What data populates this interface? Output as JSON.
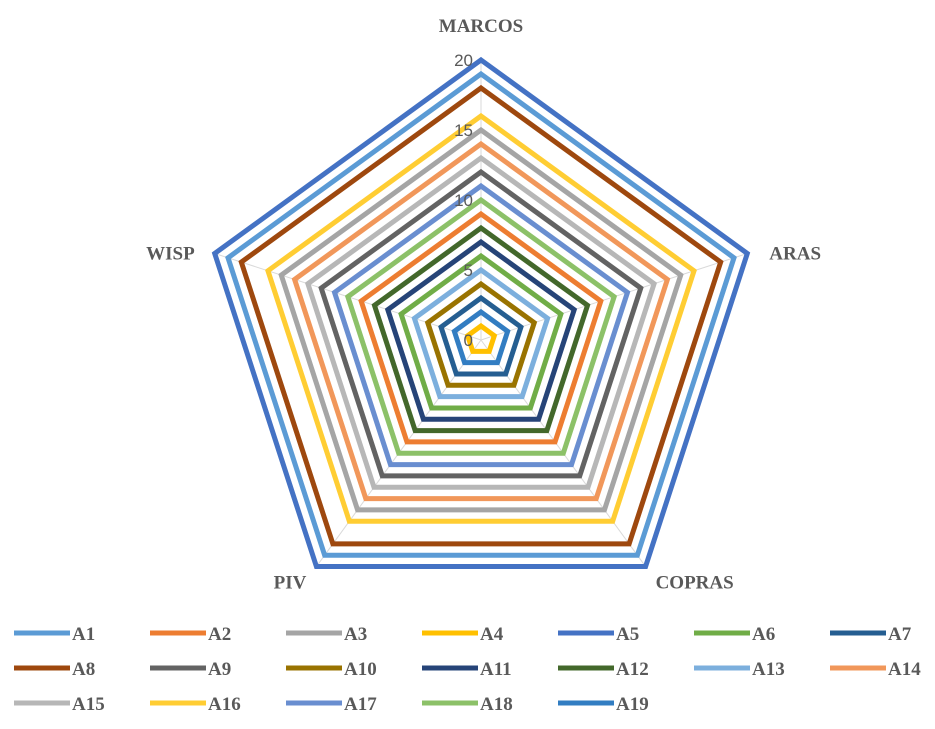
{
  "chart_data": {
    "type": "radar",
    "axes": [
      "MARCOS",
      "ARAS",
      "COPRAS",
      "PIV",
      "WISP"
    ],
    "rmin": 0,
    "rmax": 20,
    "ticks": [
      "0",
      "5",
      "10",
      "15",
      "20"
    ],
    "grid": true,
    "legend_position": "bottom",
    "series": [
      {
        "name": "A1",
        "color": "#5B9BD5",
        "values": [
          19,
          19,
          19,
          19,
          19
        ]
      },
      {
        "name": "A2",
        "color": "#ED7D31",
        "values": [
          9,
          9,
          9,
          9,
          9
        ]
      },
      {
        "name": "A3",
        "color": "#A5A5A5",
        "values": [
          15,
          15,
          15,
          15,
          15
        ]
      },
      {
        "name": "A4",
        "color": "#FFC000",
        "values": [
          1,
          1,
          1,
          1,
          1
        ]
      },
      {
        "name": "A5",
        "color": "#4472C4",
        "values": [
          20,
          20,
          20,
          20,
          20
        ]
      },
      {
        "name": "A6",
        "color": "#70AD47",
        "values": [
          6,
          6,
          6,
          6,
          6
        ]
      },
      {
        "name": "A7",
        "color": "#255E91",
        "values": [
          3,
          3,
          3,
          3,
          3
        ]
      },
      {
        "name": "A8",
        "color": "#9E480E",
        "values": [
          18,
          18,
          18,
          18,
          18
        ]
      },
      {
        "name": "A9",
        "color": "#636363",
        "values": [
          12,
          12,
          12,
          12,
          12
        ]
      },
      {
        "name": "A10",
        "color": "#997300",
        "values": [
          4,
          4,
          4,
          4,
          4
        ]
      },
      {
        "name": "A11",
        "color": "#264478",
        "values": [
          7,
          7,
          7,
          7,
          7
        ]
      },
      {
        "name": "A12",
        "color": "#43682B",
        "values": [
          8,
          8,
          8,
          8,
          8
        ]
      },
      {
        "name": "A13",
        "color": "#7CAFDD",
        "values": [
          5,
          5,
          5,
          5,
          5
        ]
      },
      {
        "name": "A14",
        "color": "#F1975A",
        "values": [
          14,
          14,
          14,
          14,
          14
        ]
      },
      {
        "name": "A15",
        "color": "#B7B7B7",
        "values": [
          13,
          13,
          13,
          13,
          13
        ]
      },
      {
        "name": "A16",
        "color": "#FFCD33",
        "values": [
          16,
          16,
          16,
          16,
          16
        ]
      },
      {
        "name": "A17",
        "color": "#698ED0",
        "values": [
          11,
          11,
          11,
          11,
          11
        ]
      },
      {
        "name": "A18",
        "color": "#8CC168",
        "values": [
          10,
          10,
          10,
          10,
          10
        ]
      },
      {
        "name": "A19",
        "color": "#327DC2",
        "values": [
          2,
          2,
          2,
          2,
          2
        ]
      }
    ]
  }
}
